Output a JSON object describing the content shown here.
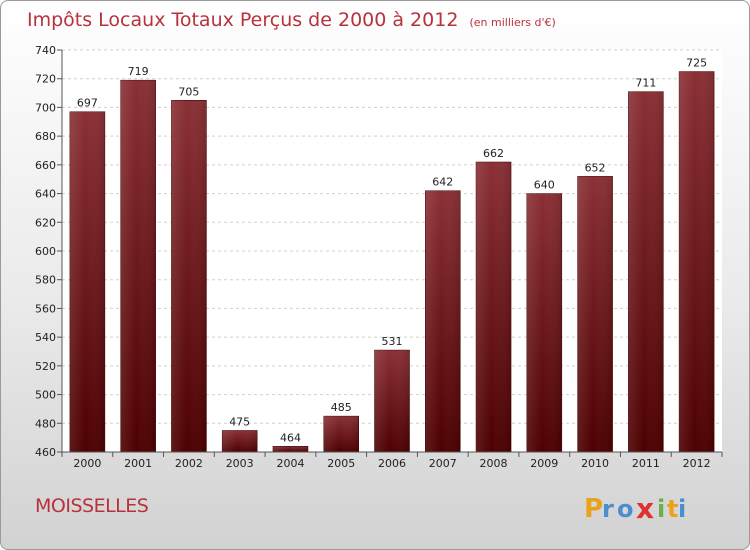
{
  "header": {
    "title": "Impôts Locaux Totaux Perçus de 2000 à 2012",
    "subtitle": "(en milliers d'€)"
  },
  "footer": {
    "city": "MOISSELLES",
    "logo_text": "Proxiti"
  },
  "colors": {
    "bar_top": "#8a3035",
    "bar_bottom": "#4d0000",
    "title": "#b8323c"
  },
  "chart_data": {
    "type": "bar",
    "categories": [
      "2000",
      "2001",
      "2002",
      "2003",
      "2004",
      "2005",
      "2006",
      "2007",
      "2008",
      "2009",
      "2010",
      "2011",
      "2012"
    ],
    "values": [
      697,
      719,
      705,
      475,
      464,
      485,
      531,
      642,
      662,
      640,
      652,
      711,
      725
    ],
    "title": "Impôts Locaux Totaux Perçus de 2000 à 2012",
    "subtitle": "(en milliers d'€)",
    "xlabel": "",
    "ylabel": "",
    "ylim": [
      460,
      740
    ],
    "yticks": [
      460,
      480,
      500,
      520,
      540,
      560,
      580,
      600,
      620,
      640,
      660,
      680,
      700,
      720,
      740
    ],
    "grid": true,
    "data_labels": true
  }
}
